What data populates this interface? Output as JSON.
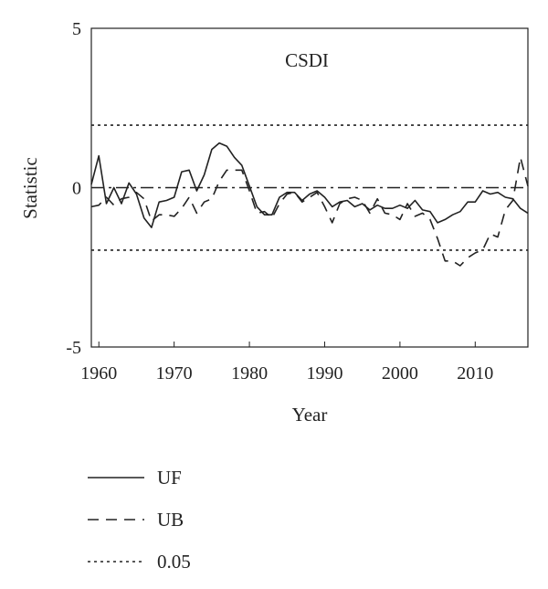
{
  "chart_data": {
    "type": "line",
    "title": "CSDI",
    "xlabel": "Year",
    "ylabel": "Statistic",
    "xlim": [
      1959,
      2017
    ],
    "ylim": [
      -5,
      5
    ],
    "x_ticks": [
      1960,
      1970,
      1980,
      1990,
      2000,
      2010
    ],
    "y_ticks": [
      5,
      0,
      -5
    ],
    "y_tick_labels": [
      "5",
      "0",
      "-5"
    ],
    "grid": false,
    "legend_position": "below",
    "series": [
      {
        "name": "UF",
        "style": "solid",
        "color": "#222222",
        "x": [
          1959,
          1960,
          1961,
          1962,
          1963,
          1964,
          1965,
          1966,
          1967,
          1968,
          1969,
          1970,
          1971,
          1972,
          1973,
          1974,
          1975,
          1976,
          1977,
          1978,
          1979,
          1980,
          1981,
          1982,
          1983,
          1984,
          1985,
          1986,
          1987,
          1988,
          1989,
          1990,
          1991,
          1992,
          1993,
          1994,
          1995,
          1996,
          1997,
          1998,
          1999,
          2000,
          2001,
          2002,
          2003,
          2004,
          2005,
          2006,
          2007,
          2008,
          2009,
          2010,
          2011,
          2012,
          2013,
          2014,
          2015,
          2016,
          2017
        ],
        "y": [
          0.1,
          1.0,
          -0.5,
          0.0,
          -0.5,
          0.15,
          -0.2,
          -0.95,
          -1.25,
          -0.45,
          -0.4,
          -0.3,
          0.5,
          0.55,
          -0.1,
          0.4,
          1.2,
          1.4,
          1.3,
          0.95,
          0.7,
          0.05,
          -0.6,
          -0.85,
          -0.85,
          -0.3,
          -0.15,
          -0.15,
          -0.4,
          -0.2,
          -0.1,
          -0.3,
          -0.6,
          -0.45,
          -0.4,
          -0.6,
          -0.5,
          -0.7,
          -0.55,
          -0.65,
          -0.65,
          -0.55,
          -0.65,
          -0.4,
          -0.7,
          -0.75,
          -1.1,
          -1.0,
          -0.85,
          -0.75,
          -0.45,
          -0.45,
          -0.1,
          -0.2,
          -0.15,
          -0.3,
          -0.35,
          -0.65,
          -0.8
        ]
      },
      {
        "name": "UB",
        "style": "dashed",
        "color": "#222222",
        "x": [
          1959,
          1960,
          1961,
          1962,
          1963,
          1964,
          1965,
          1966,
          1967,
          1968,
          1969,
          1970,
          1971,
          1972,
          1973,
          1974,
          1975,
          1976,
          1977,
          1978,
          1979,
          1980,
          1981,
          1982,
          1983,
          1984,
          1985,
          1986,
          1987,
          1988,
          1989,
          1990,
          1991,
          1992,
          1993,
          1994,
          1995,
          1996,
          1997,
          1998,
          1999,
          2000,
          2001,
          2002,
          2003,
          2004,
          2005,
          2006,
          2007,
          2008,
          2009,
          2010,
          2011,
          2012,
          2013,
          2014,
          2015,
          2016,
          2017
        ],
        "y": [
          -0.6,
          -0.55,
          -0.3,
          -0.55,
          -0.35,
          -0.3,
          -0.15,
          -0.35,
          -1.05,
          -0.85,
          -0.85,
          -0.9,
          -0.65,
          -0.3,
          -0.8,
          -0.45,
          -0.35,
          0.2,
          0.55,
          0.55,
          0.55,
          -0.1,
          -0.8,
          -0.75,
          -0.95,
          -0.5,
          -0.2,
          -0.15,
          -0.45,
          -0.3,
          -0.15,
          -0.6,
          -1.1,
          -0.5,
          -0.35,
          -0.3,
          -0.4,
          -0.8,
          -0.35,
          -0.8,
          -0.85,
          -1.0,
          -0.5,
          -0.9,
          -0.8,
          -1.0,
          -1.6,
          -2.3,
          -2.3,
          -2.45,
          -2.2,
          -2.05,
          -1.95,
          -1.45,
          -1.55,
          -0.7,
          -0.4,
          0.95,
          0.05
        ]
      },
      {
        "name": "",
        "style": "dashdot",
        "color": "#222222",
        "x": [
          1959,
          2017
        ],
        "y": [
          0,
          0
        ]
      },
      {
        "name": "0.05",
        "style": "dotted",
        "color": "#222222",
        "x": [
          1959,
          2017
        ],
        "y": [
          1.96,
          1.96
        ]
      },
      {
        "name": "",
        "style": "dotted",
        "color": "#222222",
        "x": [
          1959,
          2017
        ],
        "y": [
          -1.96,
          -1.96
        ]
      }
    ]
  },
  "legend": [
    {
      "label": "UF",
      "style": "solid"
    },
    {
      "label": "UB",
      "style": "dashed"
    },
    {
      "label": "0.05",
      "style": "dotted"
    }
  ]
}
